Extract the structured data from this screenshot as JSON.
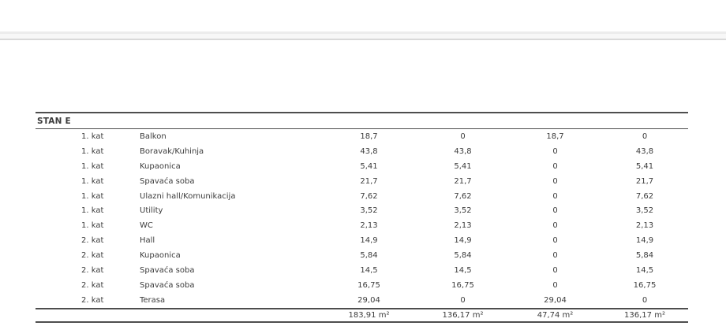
{
  "table": {
    "title": "STAN E",
    "columns": [
      "floor",
      "room",
      "area",
      "closed_area",
      "open_area",
      "net_area"
    ],
    "rows": [
      {
        "floor": "1. kat",
        "room": "Balkon",
        "values": [
          "18,7",
          "0",
          "18,7",
          "0"
        ]
      },
      {
        "floor": "1. kat",
        "room": "Boravak/Kuhinja",
        "values": [
          "43,8",
          "43,8",
          "0",
          "43,8"
        ]
      },
      {
        "floor": "1. kat",
        "room": "Kupaonica",
        "values": [
          "5,41",
          "5,41",
          "0",
          "5,41"
        ]
      },
      {
        "floor": "1. kat",
        "room": "Spavaća soba",
        "values": [
          "21,7",
          "21,7",
          "0",
          "21,7"
        ]
      },
      {
        "floor": "1. kat",
        "room": "Ulazni hall/Komunikacija",
        "values": [
          "7,62",
          "7,62",
          "0",
          "7,62"
        ]
      },
      {
        "floor": "1. kat",
        "room": "Utility",
        "values": [
          "3,52",
          "3,52",
          "0",
          "3,52"
        ]
      },
      {
        "floor": "1. kat",
        "room": "WC",
        "values": [
          "2,13",
          "2,13",
          "0",
          "2,13"
        ]
      },
      {
        "floor": "2. kat",
        "room": "Hall",
        "values": [
          "14,9",
          "14,9",
          "0",
          "14,9"
        ]
      },
      {
        "floor": "2. kat",
        "room": "Kupaonica",
        "values": [
          "5,84",
          "5,84",
          "0",
          "5,84"
        ]
      },
      {
        "floor": "2. kat",
        "room": "Spavaća soba",
        "values": [
          "14,5",
          "14,5",
          "0",
          "14,5"
        ]
      },
      {
        "floor": "2. kat",
        "room": "Spavaća soba",
        "values": [
          "16,75",
          "16,75",
          "0",
          "16,75"
        ]
      },
      {
        "floor": "2. kat",
        "room": "Terasa",
        "values": [
          "29,04",
          "0",
          "29,04",
          "0"
        ]
      }
    ],
    "totals": [
      "183,91 m²",
      "136,17 m²",
      "47,74 m²",
      "136,17 m²"
    ]
  },
  "colors": {
    "text": "#3c3c3c",
    "table_line": "#4e4e4e",
    "divider_light": "#ececec",
    "divider_dark": "#d9d9d9"
  }
}
